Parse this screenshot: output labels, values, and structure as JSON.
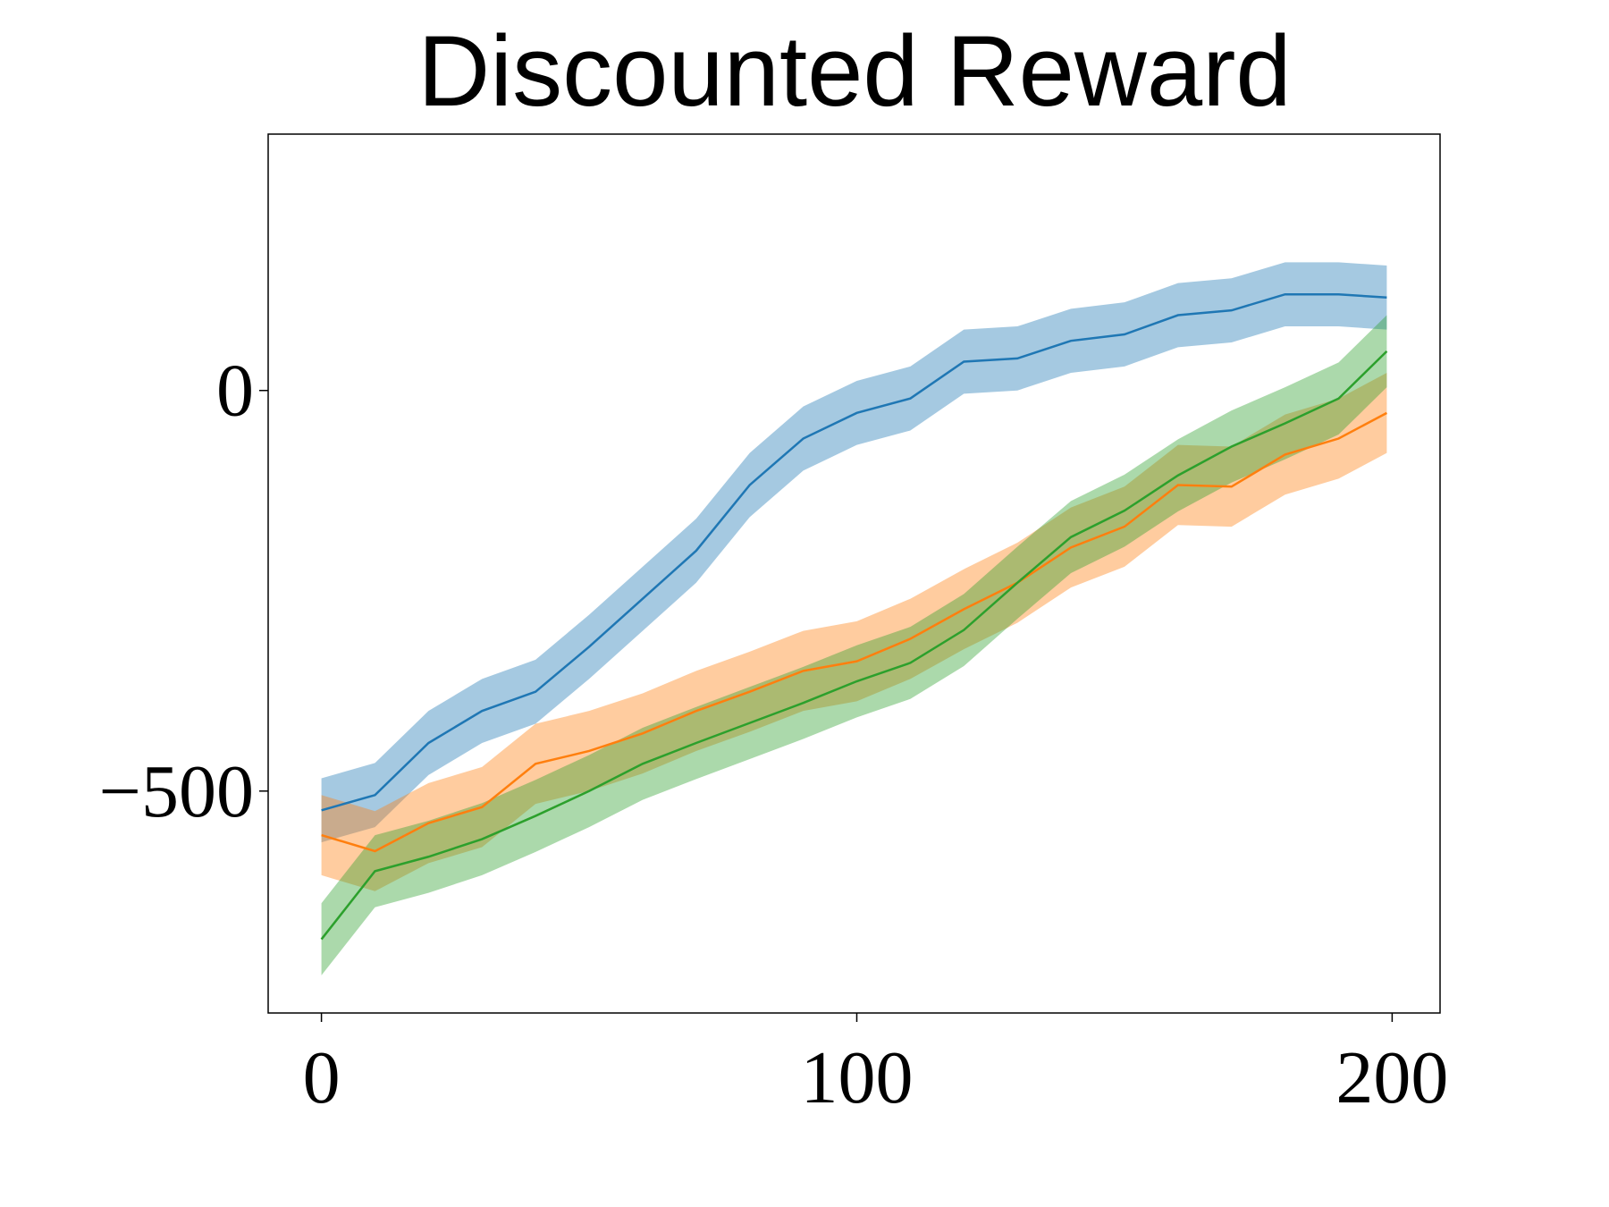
{
  "chart_data": {
    "type": "line",
    "title": "Discounted Reward",
    "x": [
      0,
      10,
      20,
      30,
      40,
      50,
      60,
      70,
      80,
      90,
      100,
      110,
      120,
      130,
      140,
      150,
      160,
      170,
      180,
      190,
      199
    ],
    "xlim": [
      -9.95,
      208.95
    ],
    "ylim": [
      -777,
      320
    ],
    "xticks": [
      0,
      100,
      200
    ],
    "yticks": [
      {
        "value": -500,
        "label": "−500"
      },
      0
    ],
    "series": [
      {
        "color": "#1f77b4",
        "values": [
          -524,
          -505,
          -440,
          -400,
          -376,
          -320,
          -260,
          -200,
          -118,
          -60,
          -28,
          -10,
          36,
          40,
          62,
          70,
          94,
          100,
          120,
          120,
          116
        ],
        "lower": [
          -564,
          -545,
          -480,
          -440,
          -416,
          -360,
          -300,
          -240,
          -158,
          -100,
          -68,
          -50,
          -4,
          0,
          22,
          30,
          54,
          60,
          80,
          80,
          76
        ],
        "upper": [
          -484,
          -465,
          -400,
          -360,
          -336,
          -280,
          -220,
          -160,
          -78,
          -20,
          12,
          30,
          76,
          80,
          102,
          110,
          134,
          140,
          160,
          160,
          156
        ]
      },
      {
        "color": "#ff7f0e",
        "values": [
          -555,
          -575,
          -540,
          -520,
          -466,
          -450,
          -428,
          -400,
          -376,
          -350,
          -338,
          -310,
          -273,
          -240,
          -196,
          -170,
          -118,
          -120,
          -80,
          -60,
          -28
        ],
        "lower": [
          -605,
          -625,
          -590,
          -570,
          -516,
          -500,
          -478,
          -450,
          -426,
          -400,
          -388,
          -360,
          -323,
          -290,
          -246,
          -220,
          -168,
          -170,
          -130,
          -110,
          -78
        ],
        "upper": [
          -505,
          -525,
          -490,
          -470,
          -416,
          -400,
          -378,
          -350,
          -326,
          -300,
          -288,
          -260,
          -223,
          -190,
          -146,
          -120,
          -68,
          -70,
          -30,
          -10,
          22
        ]
      },
      {
        "color": "#2ca02c",
        "values": [
          -685,
          -600,
          -582,
          -560,
          -531,
          -500,
          -466,
          -440,
          -415,
          -390,
          -363,
          -340,
          -299,
          -240,
          -183,
          -150,
          -106,
          -70,
          -41,
          -10,
          49
        ],
        "lower": [
          -730,
          -645,
          -627,
          -605,
          -576,
          -545,
          -511,
          -485,
          -460,
          -435,
          -408,
          -385,
          -344,
          -285,
          -228,
          -195,
          -151,
          -115,
          -86,
          -55,
          4
        ],
        "upper": [
          -640,
          -555,
          -537,
          -515,
          -486,
          -455,
          -421,
          -395,
          -370,
          -345,
          -318,
          -295,
          -254,
          -195,
          -138,
          -105,
          -61,
          -25,
          4,
          35,
          94
        ]
      }
    ]
  }
}
